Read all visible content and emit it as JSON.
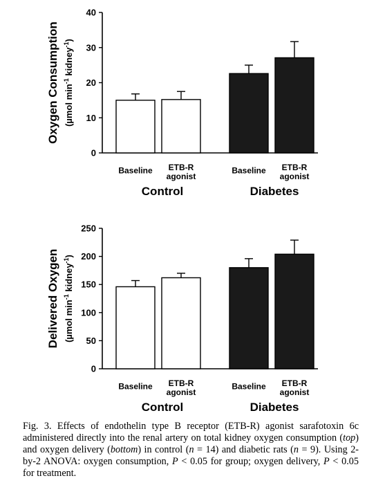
{
  "chart_data": [
    {
      "type": "bar",
      "ylabel": "Oxygen Consumption",
      "yunit": {
        "prefix": "(µmol min",
        "sup1": "-1",
        "mid": " kidney",
        "sup2": "-1",
        "suffix": ")"
      },
      "ylim": [
        0,
        40
      ],
      "yticks": [
        "0",
        "10",
        "20",
        "30",
        "40"
      ],
      "groups": [
        "Control",
        "Diabetes"
      ],
      "categories": [
        {
          "line1": "Baseline",
          "line2": ""
        },
        {
          "line1": "ETB-R",
          "line2": "agonist"
        },
        {
          "line1": "Baseline",
          "line2": ""
        },
        {
          "line1": "ETB-R",
          "line2": "agonist"
        }
      ],
      "values": [
        15,
        15.2,
        22.6,
        27.1
      ],
      "errors": [
        1.8,
        2.3,
        2.4,
        4.6
      ],
      "colors": [
        "#ffffff",
        "#ffffff",
        "#1a1a1a",
        "#1a1a1a"
      ]
    },
    {
      "type": "bar",
      "ylabel": "Delivered Oxygen",
      "yunit": {
        "prefix": "(µmol min",
        "sup1": "-1",
        "mid": " kidney",
        "sup2": "-1",
        "suffix": ")"
      },
      "ylim": [
        0,
        250
      ],
      "yticks": [
        "0",
        "50",
        "100",
        "150",
        "200",
        "250"
      ],
      "groups": [
        "Control",
        "Diabetes"
      ],
      "categories": [
        {
          "line1": "Baseline",
          "line2": ""
        },
        {
          "line1": "ETB-R",
          "line2": "agonist"
        },
        {
          "line1": "Baseline",
          "line2": ""
        },
        {
          "line1": "ETB-R",
          "line2": "agonist"
        }
      ],
      "values": [
        146,
        162,
        180,
        204
      ],
      "errors": [
        11,
        8,
        16,
        25
      ],
      "colors": [
        "#ffffff",
        "#ffffff",
        "#1a1a1a",
        "#1a1a1a"
      ]
    }
  ],
  "caption": {
    "segments": [
      {
        "t": "Fig. 3. Effects of endothelin type B receptor (ETB-R) agonist sarafotoxin 6c administered directly into the renal artery on total kidney oxygen consumption (",
        "i": false
      },
      {
        "t": "top",
        "i": true
      },
      {
        "t": ") and oxygen delivery (",
        "i": false
      },
      {
        "t": "bottom",
        "i": true
      },
      {
        "t": ") in control (",
        "i": false
      },
      {
        "t": "n",
        "i": true
      },
      {
        "t": " = 14) and diabetic rats (",
        "i": false
      },
      {
        "t": "n",
        "i": true
      },
      {
        "t": " = 9). Using 2-by-2 ANOVA: oxygen consumption, ",
        "i": false
      },
      {
        "t": "P",
        "i": true
      },
      {
        "t": " < 0.05 for group; oxygen delivery, ",
        "i": false
      },
      {
        "t": "P",
        "i": true
      },
      {
        "t": " < 0.05 for treatment.",
        "i": false
      }
    ]
  }
}
